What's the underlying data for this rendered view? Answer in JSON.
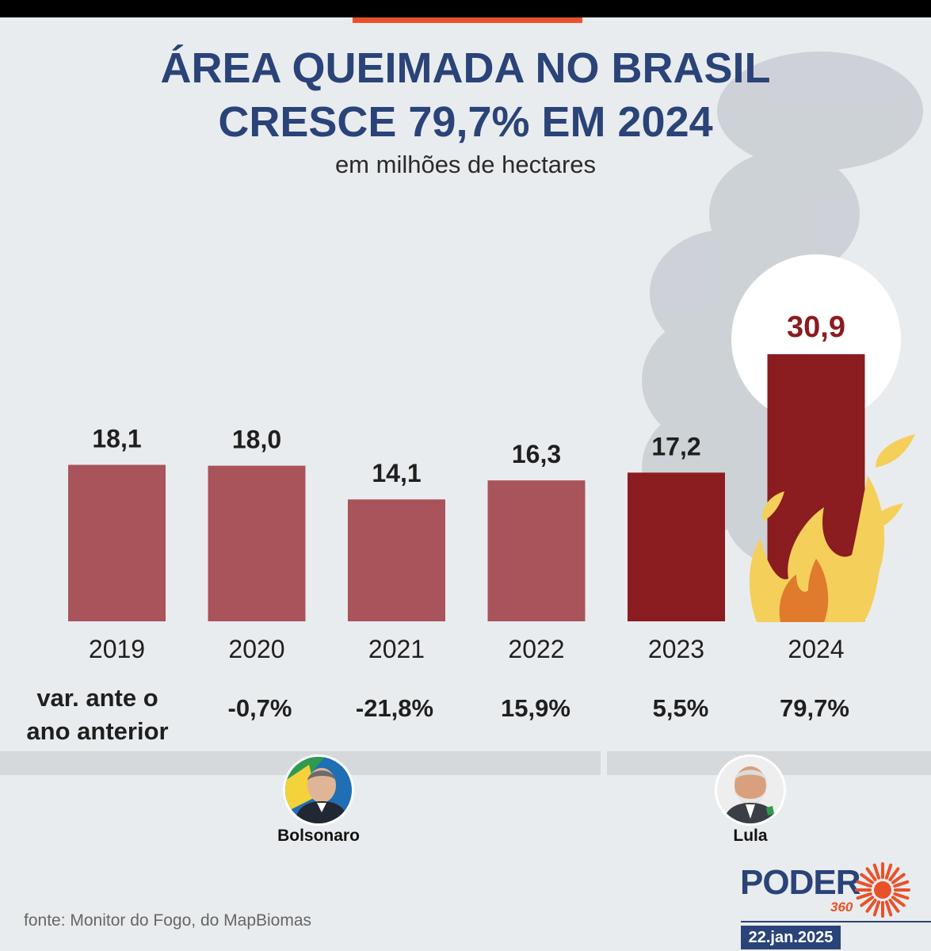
{
  "title_line1": "ÁREA QUEIMADA NO BRASIL",
  "title_line2": "CRESCE 79,7% EM 2024",
  "subtitle": "em milhões de hectares",
  "chart_data": {
    "type": "bar",
    "title": "ÁREA QUEIMADA NO BRASIL CRESCE 79,7% EM 2024",
    "subtitle": "em milhões de hectares",
    "categories": [
      "2019",
      "2020",
      "2021",
      "2022",
      "2023",
      "2024"
    ],
    "values": [
      18.1,
      18.0,
      14.1,
      16.3,
      17.2,
      30.9
    ],
    "value_labels": [
      "18,1",
      "18,0",
      "14,1",
      "16,3",
      "17,2",
      "30,9"
    ],
    "ylim": [
      0,
      33
    ],
    "grid": false,
    "colors": [
      "#a8545a",
      "#a8545a",
      "#a8545a",
      "#a8545a",
      "#8b1c1f",
      "#8b1c1f"
    ],
    "highlight_label_color": "#8b1c1f"
  },
  "variation": {
    "label": "var. ante o ano anterior",
    "values": [
      "-0,7%",
      "-21,8%",
      "15,9%",
      "5,5%",
      "79,7%"
    ]
  },
  "presidents": [
    {
      "name": "Bolsonaro"
    },
    {
      "name": "Lula"
    }
  ],
  "source": "fonte: Monitor do Fogo, do MapBiomas",
  "logo": {
    "text": "PODER",
    "number": "360"
  },
  "date": "22.jan.2025",
  "colors": {
    "title": "#2a4378",
    "accent": "#e8522a",
    "bar_light": "#a8545a",
    "bar_dark": "#8b1c1f",
    "flame": "#f4cf5a",
    "flame_core": "#e07a2c"
  }
}
